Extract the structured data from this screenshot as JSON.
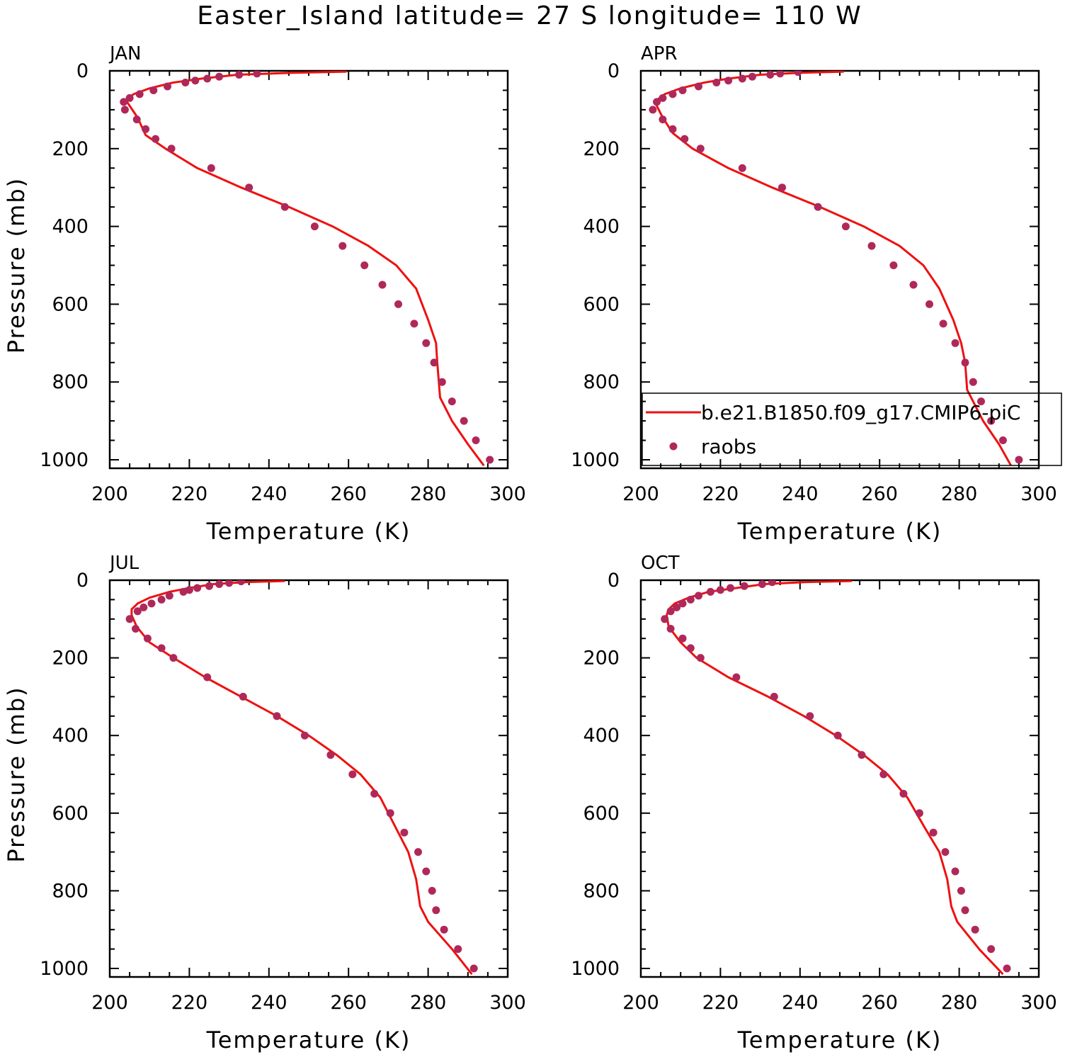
{
  "title": "Easter_Island  latitude= 27 S longitude= 110 W",
  "colors": {
    "model_line": "#ee1111",
    "obs_marker": "#b0285a"
  },
  "legend": {
    "position": "lower-right of APR panel",
    "entries": [
      "b.e21.B1850.f09_g17.CMIP6-piC",
      "raobs"
    ]
  },
  "chart_data": [
    {
      "type": "line",
      "panel": "JAN",
      "xlabel": "Temperature (K)",
      "ylabel": "Pressure (mb)",
      "xlim": [
        200,
        300
      ],
      "ylim": [
        0,
        1000
      ],
      "y_inverted": true,
      "xticks": [
        200,
        220,
        240,
        260,
        280,
        300
      ],
      "yticks": [
        0,
        200,
        400,
        600,
        800,
        1000
      ],
      "series": [
        {
          "name": "b.e21.B1850.f09_g17.CMIP6-piC",
          "style": "line",
          "x": [
            259.5,
            246,
            232,
            223,
            216,
            210,
            206,
            204,
            205,
            207,
            209,
            214,
            222,
            233,
            245,
            256,
            265,
            272,
            277,
            280,
            282,
            282.3,
            283,
            286,
            290,
            294
          ],
          "y": [
            2,
            5,
            10,
            20,
            30,
            45,
            60,
            75,
            90,
            120,
            165,
            200,
            250,
            300,
            350,
            400,
            450,
            500,
            560,
            640,
            700,
            750,
            840,
            900,
            960,
            1015
          ]
        },
        {
          "name": "raobs",
          "style": "markers",
          "x": [
            237,
            232.5,
            227.5,
            224.5,
            221.5,
            219,
            214.5,
            211,
            207.5,
            205,
            203.5,
            203.8,
            206.8,
            209,
            211.5,
            215.5,
            225.5,
            235,
            244,
            251.5,
            258.5,
            264,
            268.5,
            272.5,
            276.5,
            279.5,
            281.5,
            283.5,
            286,
            289,
            292,
            295.5
          ],
          "y": [
            7,
            10,
            15,
            20,
            25,
            30,
            40,
            50,
            60,
            70,
            80,
            100,
            125,
            150,
            175,
            200,
            250,
            300,
            350,
            400,
            450,
            500,
            550,
            600,
            650,
            700,
            750,
            800,
            850,
            900,
            950,
            1000
          ]
        }
      ]
    },
    {
      "type": "line",
      "panel": "APR",
      "xlabel": "Temperature (K)",
      "ylabel": "",
      "xlim": [
        200,
        300
      ],
      "ylim": [
        0,
        1000
      ],
      "y_inverted": true,
      "xticks": [
        200,
        220,
        240,
        260,
        280,
        300
      ],
      "yticks": [
        0,
        200,
        400,
        600,
        800,
        1000
      ],
      "series": [
        {
          "name": "b.e21.B1850.f09_g17.CMIP6-piC",
          "style": "line",
          "x": [
            251,
            240,
            230,
            222,
            216,
            210,
            206,
            204,
            204,
            205.5,
            208,
            213,
            222,
            233,
            245,
            256,
            265,
            271,
            275,
            278.5,
            280.5,
            281.5,
            282,
            286,
            290,
            293
          ],
          "y": [
            2,
            5,
            10,
            20,
            30,
            45,
            60,
            75,
            90,
            120,
            160,
            200,
            250,
            300,
            350,
            400,
            450,
            500,
            560,
            640,
            700,
            750,
            820,
            900,
            960,
            1015
          ]
        },
        {
          "name": "raobs",
          "style": "markers",
          "x": [
            239.5,
            235,
            232.5,
            228,
            225.5,
            222,
            219,
            214.5,
            210.5,
            208,
            205.5,
            204,
            203,
            205.5,
            208,
            211,
            215,
            225.5,
            235.5,
            244.5,
            251.5,
            258,
            263.5,
            268.5,
            272.5,
            276,
            279,
            281.5,
            283.5,
            285.5,
            288,
            291,
            295
          ],
          "y": [
            3,
            7,
            10,
            15,
            20,
            25,
            30,
            40,
            50,
            60,
            70,
            80,
            100,
            125,
            150,
            175,
            200,
            250,
            300,
            350,
            400,
            450,
            500,
            550,
            600,
            650,
            700,
            750,
            800,
            850,
            900,
            950,
            1000
          ]
        }
      ]
    },
    {
      "type": "line",
      "panel": "JUL",
      "xlabel": "Temperature (K)",
      "ylabel": "Pressure (mb)",
      "xlim": [
        200,
        300
      ],
      "ylim": [
        0,
        1000
      ],
      "y_inverted": true,
      "xticks": [
        200,
        220,
        240,
        260,
        280,
        300
      ],
      "yticks": [
        0,
        200,
        400,
        600,
        800,
        1000
      ],
      "series": [
        {
          "name": "b.e21.B1850.f09_g17.CMIP6-piC",
          "style": "line",
          "x": [
            244,
            234,
            226,
            220,
            215,
            210,
            207,
            205.5,
            205.5,
            206.8,
            210,
            216,
            224,
            233,
            242,
            250,
            257,
            263,
            268,
            272,
            275,
            277,
            278,
            280,
            286,
            291
          ],
          "y": [
            2,
            5,
            10,
            20,
            30,
            45,
            60,
            75,
            90,
            120,
            160,
            200,
            250,
            300,
            350,
            400,
            450,
            500,
            560,
            640,
            700,
            770,
            840,
            880,
            950,
            1015
          ]
        },
        {
          "name": "raobs",
          "style": "markers",
          "x": [
            233,
            230,
            227.5,
            225,
            222,
            220,
            218.5,
            215,
            213,
            210.5,
            208.5,
            207,
            205,
            206.5,
            209.5,
            213,
            216,
            224.5,
            233.5,
            242,
            249,
            255.5,
            261,
            266.5,
            270.5,
            274,
            277.5,
            279.5,
            281,
            282,
            284,
            287.5,
            291.5
          ],
          "y": [
            3,
            7,
            10,
            15,
            20,
            25,
            30,
            40,
            50,
            60,
            70,
            80,
            100,
            125,
            150,
            175,
            200,
            250,
            300,
            350,
            400,
            450,
            500,
            550,
            600,
            650,
            700,
            750,
            800,
            850,
            900,
            950,
            1000
          ]
        }
      ]
    },
    {
      "type": "line",
      "panel": "OCT",
      "xlabel": "Temperature (K)",
      "ylabel": "",
      "xlim": [
        200,
        300
      ],
      "ylim": [
        0,
        1000
      ],
      "y_inverted": true,
      "xticks": [
        200,
        220,
        240,
        260,
        280,
        300
      ],
      "yticks": [
        0,
        200,
        400,
        600,
        800,
        1000
      ],
      "series": [
        {
          "name": "b.e21.B1850.f09_g17.CMIP6-piC",
          "style": "line",
          "x": [
            253,
            241,
            231,
            224,
            217,
            212,
            208.5,
            207,
            206.5,
            207,
            210,
            214,
            222,
            232,
            241,
            249,
            256,
            262,
            267,
            271.5,
            275,
            277,
            278,
            279.5,
            285,
            291
          ],
          "y": [
            2,
            5,
            10,
            20,
            30,
            45,
            60,
            75,
            90,
            120,
            160,
            200,
            250,
            300,
            350,
            400,
            450,
            500,
            560,
            640,
            700,
            770,
            840,
            880,
            950,
            1015
          ]
        },
        {
          "name": "raobs",
          "style": "markers",
          "x": [
            233,
            230.5,
            226,
            222.5,
            220,
            217.5,
            214.5,
            212.5,
            210.5,
            209,
            207.5,
            206,
            207.5,
            210.5,
            212.5,
            215,
            224,
            233.5,
            242.5,
            249.5,
            255.5,
            261,
            266,
            270,
            273.5,
            276.5,
            279,
            280.5,
            281.5,
            284,
            288,
            292
          ],
          "y": [
            5,
            10,
            15,
            20,
            25,
            30,
            40,
            50,
            60,
            70,
            80,
            100,
            125,
            150,
            175,
            200,
            250,
            300,
            350,
            400,
            450,
            500,
            550,
            600,
            650,
            700,
            750,
            800,
            850,
            900,
            950,
            1000
          ]
        }
      ]
    }
  ]
}
